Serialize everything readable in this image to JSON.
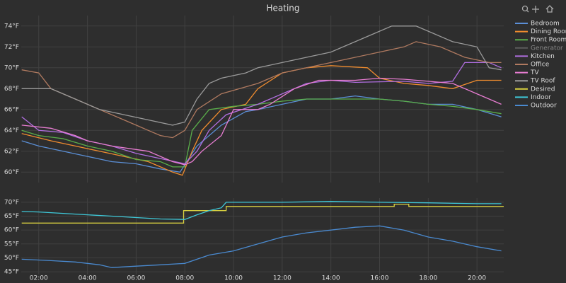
{
  "chart_data": [
    {
      "type": "line",
      "title": "Heating",
      "grid": true,
      "legend": "right",
      "xlim": [
        1.28,
        21.1
      ],
      "ylim": [
        59,
        75
      ],
      "yticks": [
        {
          "value": 60,
          "label": "60°F"
        },
        {
          "value": 62,
          "label": "62°F"
        },
        {
          "value": 64,
          "label": "64°F"
        },
        {
          "value": 66,
          "label": "66°F"
        },
        {
          "value": 68,
          "label": "68°F"
        },
        {
          "value": 70,
          "label": "70°F"
        },
        {
          "value": 72,
          "label": "72°F"
        },
        {
          "value": 74,
          "label": "74°F"
        }
      ],
      "series": [
        {
          "name": "Bedroom",
          "color": "#5b8fd6",
          "x": [
            1.3,
            2,
            3,
            4,
            5,
            6,
            7,
            7.8,
            8.5,
            9.5,
            10.5,
            11,
            12,
            13,
            14,
            15,
            16,
            17,
            18,
            19,
            20,
            21
          ],
          "values": [
            63,
            62.5,
            62,
            61.5,
            61,
            60.8,
            60.3,
            60,
            62.5,
            64.5,
            65.8,
            66,
            66.5,
            67,
            67,
            67.3,
            67,
            66.8,
            66.5,
            66.5,
            66,
            65.3
          ]
        },
        {
          "name": "Dining Room",
          "color": "#f08c2e",
          "x": [
            1.3,
            2.5,
            3.5,
            4.5,
            5.5,
            6.5,
            7,
            7.5,
            7.9,
            8.3,
            8.7,
            9.5,
            10.5,
            11,
            12,
            13,
            14,
            15.5,
            16,
            17,
            18,
            19,
            20,
            21
          ],
          "values": [
            63.7,
            63,
            62.5,
            62,
            61.5,
            61,
            60.5,
            60,
            59.7,
            62,
            64,
            66,
            66.5,
            68,
            69.5,
            70,
            70.2,
            70,
            69,
            68.5,
            68.3,
            68,
            68.8,
            68.8
          ]
        },
        {
          "name": "Front Room",
          "color": "#5aae4a",
          "x": [
            1.3,
            2,
            3,
            4,
            5,
            6,
            7,
            7.5,
            8,
            8.3,
            9,
            10,
            11,
            12,
            13,
            14.5,
            16,
            17,
            18,
            19,
            20,
            21
          ],
          "values": [
            64,
            63.5,
            63.2,
            62.5,
            62,
            61.2,
            61,
            60.5,
            60.5,
            64,
            66,
            66.3,
            66.5,
            66.8,
            67,
            67,
            67,
            66.8,
            66.5,
            66.3,
            66,
            65.6
          ]
        },
        {
          "name": "Generator",
          "color": "#888888",
          "visible": false
        },
        {
          "name": "Kitchen",
          "color": "#b06ee0",
          "x": [
            1.3,
            2,
            3,
            4,
            5,
            6,
            7,
            8,
            8.5,
            9,
            9.7,
            11,
            12,
            13,
            14,
            15,
            17,
            18,
            19,
            19.5,
            20.5,
            21
          ],
          "values": [
            65.3,
            64,
            63.8,
            63,
            62.5,
            61.8,
            61.3,
            60.8,
            62,
            64,
            65.5,
            66.5,
            67.5,
            68.5,
            68.8,
            68.6,
            68.7,
            68.5,
            68.7,
            70.5,
            70.5,
            70
          ]
        },
        {
          "name": "Office",
          "color": "#b07a60",
          "x": [
            1.3,
            2,
            2.5,
            3.5,
            4,
            4.5,
            5.5,
            6,
            6.5,
            7,
            7.5,
            8,
            8.5,
            9.5,
            11,
            12,
            13,
            14,
            15,
            16,
            17,
            17.5,
            18.5,
            19.5,
            20.5,
            21
          ],
          "values": [
            69.8,
            69.5,
            68,
            67,
            66.5,
            66,
            65,
            64.5,
            64,
            63.5,
            63.3,
            64,
            66,
            67.5,
            68.5,
            69.5,
            70,
            70.5,
            71,
            71.5,
            72,
            72.5,
            72,
            71,
            70.5,
            70.5
          ]
        },
        {
          "name": "TV",
          "color": "#e87dd2",
          "x": [
            1.3,
            2.5,
            3.5,
            4,
            5,
            6.5,
            7.5,
            8,
            8.3,
            8.7,
            9.5,
            10,
            11,
            11.5,
            12.5,
            13.5,
            15,
            16,
            17,
            18,
            19,
            20,
            21
          ],
          "values": [
            64.5,
            64.2,
            63.5,
            63,
            62.5,
            62,
            61,
            60.7,
            61,
            62,
            63.5,
            66,
            66,
            66.5,
            68,
            68.8,
            68.8,
            69,
            68.9,
            68.7,
            68.5,
            67.5,
            66.5
          ]
        },
        {
          "name": "TV Roof",
          "color": "#9a9a9a",
          "x": [
            1.3,
            2.5,
            3.5,
            4.5,
            5.5,
            6.5,
            7.5,
            8,
            8.5,
            9,
            9.5,
            10.5,
            11,
            12,
            13,
            14,
            15,
            15.5,
            16.5,
            17.5,
            18,
            19,
            20,
            20.5,
            21
          ],
          "values": [
            68,
            68,
            67,
            66,
            65.5,
            65,
            64.5,
            64.8,
            67,
            68.5,
            69,
            69.5,
            70,
            70.5,
            71,
            71.5,
            72.5,
            73,
            74,
            74,
            73.5,
            72.5,
            72,
            70,
            69.8
          ]
        }
      ]
    },
    {
      "type": "line",
      "grid": true,
      "xlim": [
        1.28,
        21.1
      ],
      "ylim": [
        44,
        71.5
      ],
      "xticks": [
        {
          "value": 2,
          "label": "02:00"
        },
        {
          "value": 4,
          "label": "04:00"
        },
        {
          "value": 6,
          "label": "06:00"
        },
        {
          "value": 8,
          "label": "08:00"
        },
        {
          "value": 10,
          "label": "10:00"
        },
        {
          "value": 12,
          "label": "12:00"
        },
        {
          "value": 14,
          "label": "14:00"
        },
        {
          "value": 16,
          "label": "16:00"
        },
        {
          "value": 18,
          "label": "18:00"
        },
        {
          "value": 20,
          "label": "20:00"
        }
      ],
      "yticks": [
        {
          "value": 45,
          "label": "45°F"
        },
        {
          "value": 50,
          "label": "50°F"
        },
        {
          "value": 55,
          "label": "55°F"
        },
        {
          "value": 60,
          "label": "60°F"
        },
        {
          "value": 65,
          "label": "65°F"
        },
        {
          "value": 70,
          "label": "70°F"
        }
      ],
      "series": [
        {
          "name": "Desired",
          "color": "#d8d040",
          "x": [
            1.3,
            7.95,
            7.95,
            9.7,
            9.7,
            16.6,
            16.6,
            17.2,
            17.2,
            21.1
          ],
          "values": [
            62.5,
            62.5,
            67,
            67,
            68.5,
            68.5,
            69.3,
            69.3,
            68.5,
            68.5
          ]
        },
        {
          "name": "Indoor",
          "color": "#3ec8d8",
          "x": [
            1.3,
            2,
            3,
            4,
            5,
            6,
            7,
            8,
            8.5,
            9,
            9.5,
            9.7,
            12,
            14,
            16,
            18,
            20,
            21
          ],
          "values": [
            66.7,
            66.5,
            66,
            65.5,
            65,
            64.5,
            64,
            63.8,
            65.5,
            67,
            68,
            70,
            70,
            70.3,
            70,
            69.8,
            69.5,
            69.5
          ]
        },
        {
          "name": "Outdoor",
          "color": "#4a8ad0",
          "x": [
            1.3,
            2.5,
            3.5,
            4.5,
            5,
            6,
            7,
            8,
            8.5,
            9,
            10,
            11,
            12,
            13,
            14,
            15,
            16,
            17,
            18,
            19,
            20,
            21
          ],
          "values": [
            49.5,
            49,
            48.5,
            47.5,
            46.5,
            47,
            47.5,
            48,
            49.5,
            51,
            52.5,
            55,
            57.5,
            59,
            60,
            61,
            61.5,
            60,
            57.5,
            56,
            54,
            52.5
          ]
        }
      ]
    }
  ]
}
